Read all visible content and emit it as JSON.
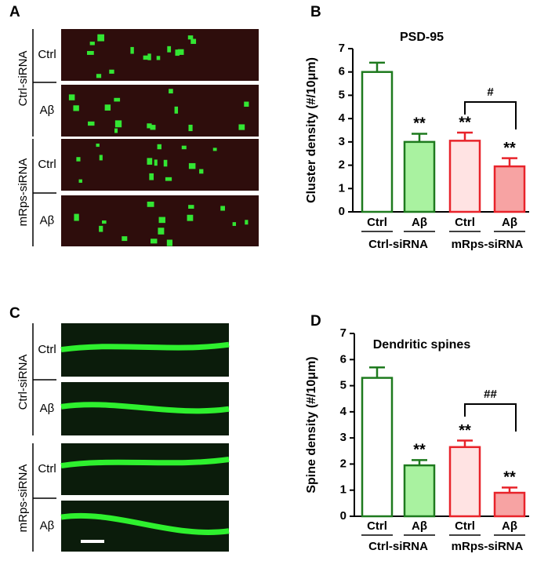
{
  "figure": {
    "panel_labels": [
      "A",
      "B",
      "C",
      "D"
    ],
    "image_panels": [
      {
        "groups": [
          "Ctrl-siRNA",
          "mRps-siRNA"
        ],
        "rows": [
          "Ctrl",
          "Aβ",
          "Ctrl",
          "Aβ"
        ]
      },
      {
        "groups": [
          "Ctrl-siRNA",
          "mRps-siRNA"
        ],
        "rows": [
          "Ctrl",
          "Aβ",
          "Ctrl",
          "Aβ"
        ]
      }
    ]
  },
  "chart_data": [
    {
      "type": "bar",
      "title": "PSD-95",
      "ylabel": "Cluster density (#/10μm)",
      "categories": [
        "Ctrl",
        "Aβ",
        "Ctrl",
        "Aβ"
      ],
      "groups": [
        "Ctrl-siRNA",
        "mRps-siRNA"
      ],
      "values": [
        6.0,
        3.0,
        3.05,
        1.95
      ],
      "errors": [
        0.4,
        0.35,
        0.35,
        0.35
      ],
      "colors": [
        "#ffffff",
        "#a9f2a0",
        "#ffe3e3",
        "#f7a3a3"
      ],
      "edge_colors": [
        "#1e7a1e",
        "#1e7a1e",
        "#e8232a",
        "#e8232a"
      ],
      "significance": [
        null,
        "**",
        "**",
        "**"
      ],
      "bracket_label": "#",
      "ylim": [
        0,
        7
      ],
      "yticks": [
        0,
        1,
        2,
        3,
        4,
        5,
        6,
        7
      ]
    },
    {
      "type": "bar",
      "title": "Dendritic spines",
      "ylabel": "Spine density (#/10μm)",
      "categories": [
        "Ctrl",
        "Aβ",
        "Ctrl",
        "Aβ"
      ],
      "groups": [
        "Ctrl-siRNA",
        "mRps-siRNA"
      ],
      "values": [
        5.3,
        1.95,
        2.65,
        0.9
      ],
      "errors": [
        0.4,
        0.2,
        0.25,
        0.2
      ],
      "colors": [
        "#ffffff",
        "#a9f2a0",
        "#ffe3e3",
        "#f7a3a3"
      ],
      "edge_colors": [
        "#1e7a1e",
        "#1e7a1e",
        "#e8232a",
        "#e8232a"
      ],
      "significance": [
        null,
        "**",
        "**",
        "**"
      ],
      "bracket_label": "##",
      "ylim": [
        0,
        7
      ],
      "yticks": [
        0,
        1,
        2,
        3,
        4,
        5,
        6,
        7
      ]
    }
  ]
}
